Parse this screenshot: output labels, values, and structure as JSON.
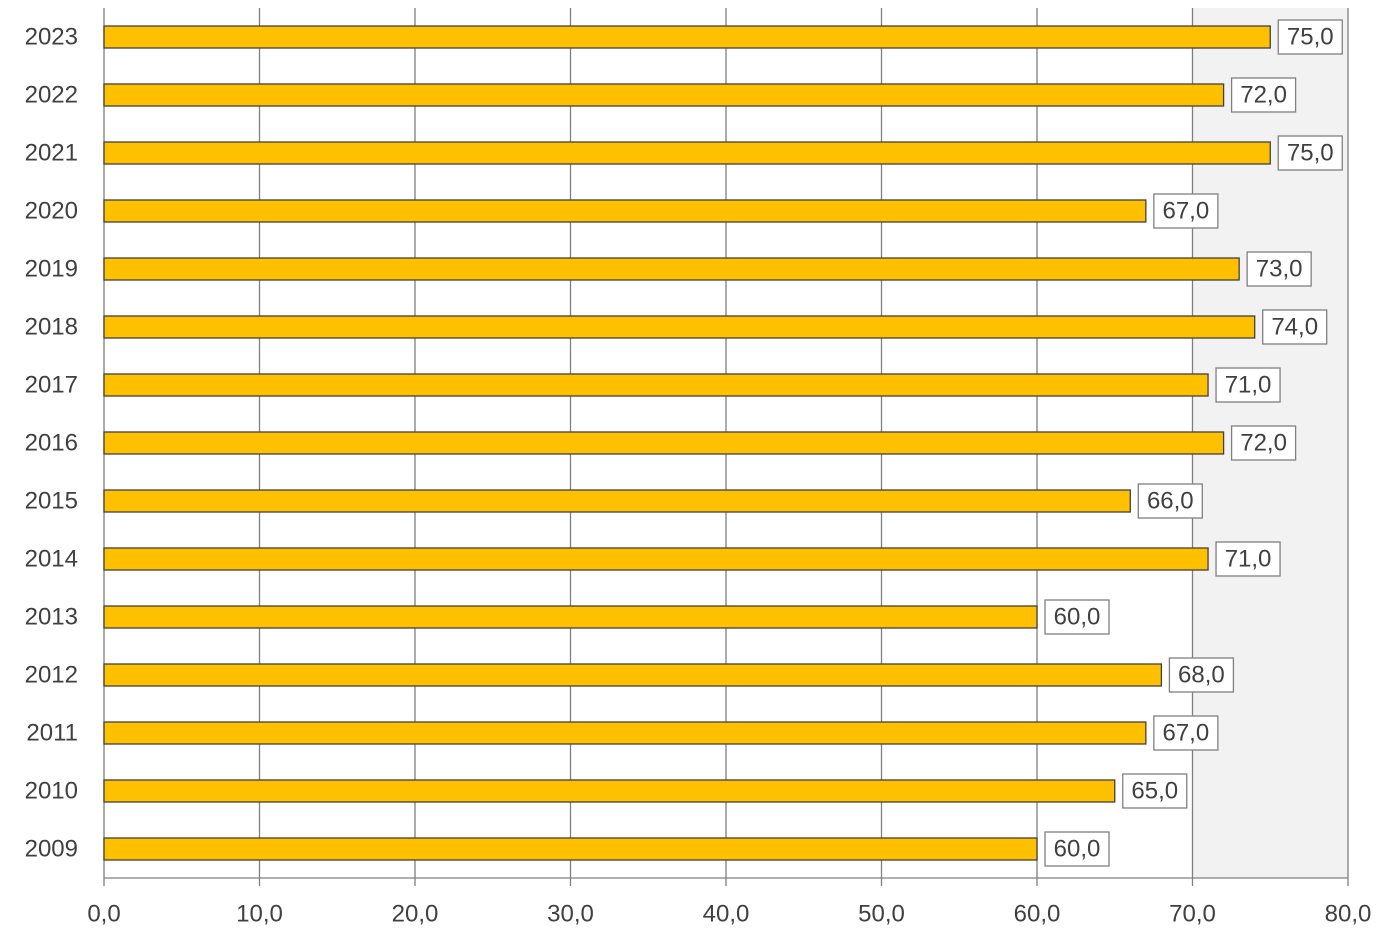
{
  "chart_data": {
    "type": "hbar",
    "categories": [
      "2023",
      "2022",
      "2021",
      "2020",
      "2019",
      "2018",
      "2017",
      "2016",
      "2015",
      "2014",
      "2013",
      "2012",
      "2011",
      "2010",
      "2009"
    ],
    "values": [
      75,
      72,
      75,
      67,
      73,
      74,
      71,
      72,
      66,
      71,
      60,
      68,
      67,
      65,
      60
    ],
    "value_labels": [
      "75,0",
      "72,0",
      "75,0",
      "67,0",
      "73,0",
      "74,0",
      "71,0",
      "72,0",
      "66,0",
      "71,0",
      "60,0",
      "68,0",
      "67,0",
      "65,0",
      "60,0"
    ],
    "color": "#ffc000",
    "xlim": [
      0,
      80
    ],
    "xticks": [
      {
        "value": 0,
        "label": "0,0"
      },
      {
        "value": 10,
        "label": "10,0"
      },
      {
        "value": 20,
        "label": "20,0"
      },
      {
        "value": 30,
        "label": "30,0"
      },
      {
        "value": 40,
        "label": "40,0"
      },
      {
        "value": 50,
        "label": "50,0"
      },
      {
        "value": 60,
        "label": "60,0"
      },
      {
        "value": 70,
        "label": "70,0"
      },
      {
        "value": 80,
        "label": "80,0"
      }
    ],
    "grid": true
  }
}
